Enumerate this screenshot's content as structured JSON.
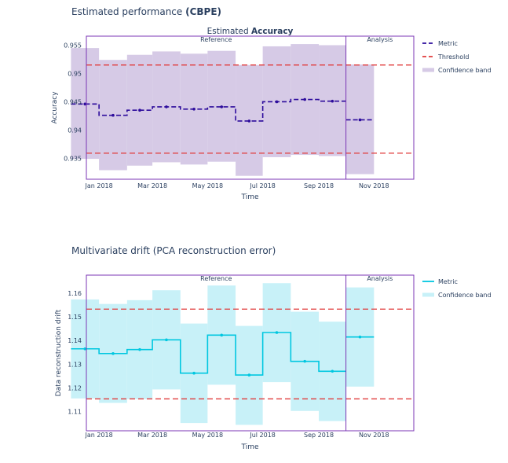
{
  "charts": [
    {
      "section_title_prefix": "Estimated performance ",
      "section_title_bold": "(CBPE)",
      "subtitle_prefix": "Estimated ",
      "subtitle_bold": "Accuracy"
    },
    {
      "section_title": "Multivariate drift (PCA reconstruction error)"
    }
  ],
  "colors": {
    "frame": "#7b36b4",
    "accuracy_line": "#2d0c9c",
    "accuracy_band": "#d6cae6",
    "threshold": "#e03a3a",
    "drift_line": "#00c7e0",
    "drift_band": "#c8f1f8"
  },
  "chart_data": [
    {
      "type": "line",
      "title": "Estimated Accuracy",
      "xlabel": "Time",
      "ylabel": "Accuracy",
      "x_ticks": [
        "Jan 2018",
        "Mar 2018",
        "May 2018",
        "Jul 2018",
        "Sep 2018",
        "Nov 2018"
      ],
      "y_ticks": [
        "0.935",
        "0.94",
        "0.945",
        "0.95",
        "0.955"
      ],
      "ylim": [
        0.9313,
        0.9566
      ],
      "grid": false,
      "legend_position": "right",
      "period_labels": [
        "Reference",
        "Analysis"
      ],
      "periods_x": [
        "2017-12-01",
        "2018-01-01",
        "2018-02-01",
        "2018-03-01",
        "2018-04-01",
        "2018-05-01",
        "2018-06-01",
        "2018-07-01",
        "2018-08-01",
        "2018-09-01",
        "2018-10-01",
        "2018-11-01",
        "2018-12-01"
      ],
      "reference_periods": 10,
      "metric": [
        0.9446,
        0.9426,
        0.9435,
        0.9441,
        0.9437,
        0.9441,
        0.9416,
        0.945,
        0.9454,
        0.9451,
        0.9418
      ],
      "band_upper": [
        0.9545,
        0.9524,
        0.9533,
        0.9539,
        0.9535,
        0.954,
        0.9515,
        0.9548,
        0.9552,
        0.955,
        0.9516
      ],
      "band_lower": [
        0.9349,
        0.9329,
        0.9337,
        0.9343,
        0.9339,
        0.9344,
        0.9319,
        0.9352,
        0.9356,
        0.9354,
        0.9322
      ],
      "upper_threshold": 0.9515,
      "lower_threshold": 0.9359,
      "legend": [
        "Metric",
        "Threshold",
        "Confidence band"
      ]
    },
    {
      "type": "line",
      "title": "",
      "xlabel": "Time",
      "ylabel": "Data reconstruction drift",
      "x_ticks": [
        "Jan 2018",
        "Mar 2018",
        "May 2018",
        "Jul 2018",
        "Sep 2018",
        "Nov 2018"
      ],
      "y_ticks": [
        "1.11",
        "1.12",
        "1.13",
        "1.14",
        "1.15",
        "1.16"
      ],
      "ylim": [
        1.1018,
        1.1677
      ],
      "grid": false,
      "legend_position": "right",
      "period_labels": [
        "Reference",
        "Analysis"
      ],
      "periods_x": [
        "2017-12-01",
        "2018-01-01",
        "2018-02-01",
        "2018-03-01",
        "2018-04-01",
        "2018-05-01",
        "2018-06-01",
        "2018-07-01",
        "2018-08-01",
        "2018-09-01",
        "2018-10-01",
        "2018-11-01",
        "2018-12-01"
      ],
      "reference_periods": 10,
      "metric": [
        1.1365,
        1.1345,
        1.1362,
        1.1403,
        1.1262,
        1.1423,
        1.1254,
        1.1434,
        1.1312,
        1.127,
        1.1415
      ],
      "band_upper": [
        1.1574,
        1.1555,
        1.1571,
        1.1613,
        1.1472,
        1.1633,
        1.1462,
        1.1643,
        1.1522,
        1.148,
        1.1625
      ],
      "band_lower": [
        1.1155,
        1.1136,
        1.1152,
        1.1193,
        1.1051,
        1.1213,
        1.1043,
        1.1224,
        1.1102,
        1.1059,
        1.1205
      ],
      "upper_threshold": 1.1533,
      "lower_threshold": 1.1153,
      "legend": [
        "Metric",
        "Confidence band"
      ]
    }
  ]
}
